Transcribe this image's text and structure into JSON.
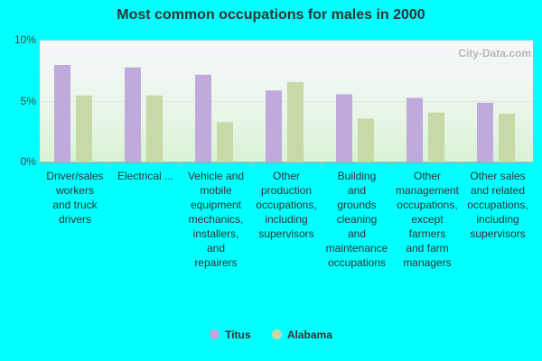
{
  "page": {
    "watermark": "City-Data.com"
  },
  "chart_data": {
    "type": "bar",
    "title": "Most common occupations for males in 2000",
    "ylim": [
      0,
      10
    ],
    "yticks": [
      "0%",
      "5%",
      "10%"
    ],
    "ytick_values": [
      0,
      5,
      10
    ],
    "grid": true,
    "legend_position": "bottom",
    "categories": [
      [
        "Driver/sales",
        "workers",
        "and truck",
        "drivers"
      ],
      [
        "Electrical ..."
      ],
      [
        "Vehicle and",
        "mobile",
        "equipment",
        "mechanics,",
        "installers,",
        "and",
        "repairers"
      ],
      [
        "Other",
        "production",
        "occupations,",
        "including",
        "supervisors"
      ],
      [
        "Building",
        "and",
        "grounds",
        "cleaning",
        "and",
        "maintenance",
        "occupations"
      ],
      [
        "Other",
        "management",
        "occupations,",
        "except",
        "farmers",
        "and farm",
        "managers"
      ],
      [
        "Other sales",
        "and related",
        "occupations,",
        "including",
        "supervisors"
      ]
    ],
    "series": [
      {
        "name": "Titus",
        "color": "#C0A9DC",
        "values": [
          8.0,
          7.8,
          7.2,
          5.9,
          5.6,
          5.3,
          4.9
        ]
      },
      {
        "name": "Alabama",
        "color": "#C6D9A6",
        "values": [
          5.5,
          5.5,
          3.3,
          6.6,
          3.6,
          4.1,
          4.0
        ]
      }
    ]
  }
}
